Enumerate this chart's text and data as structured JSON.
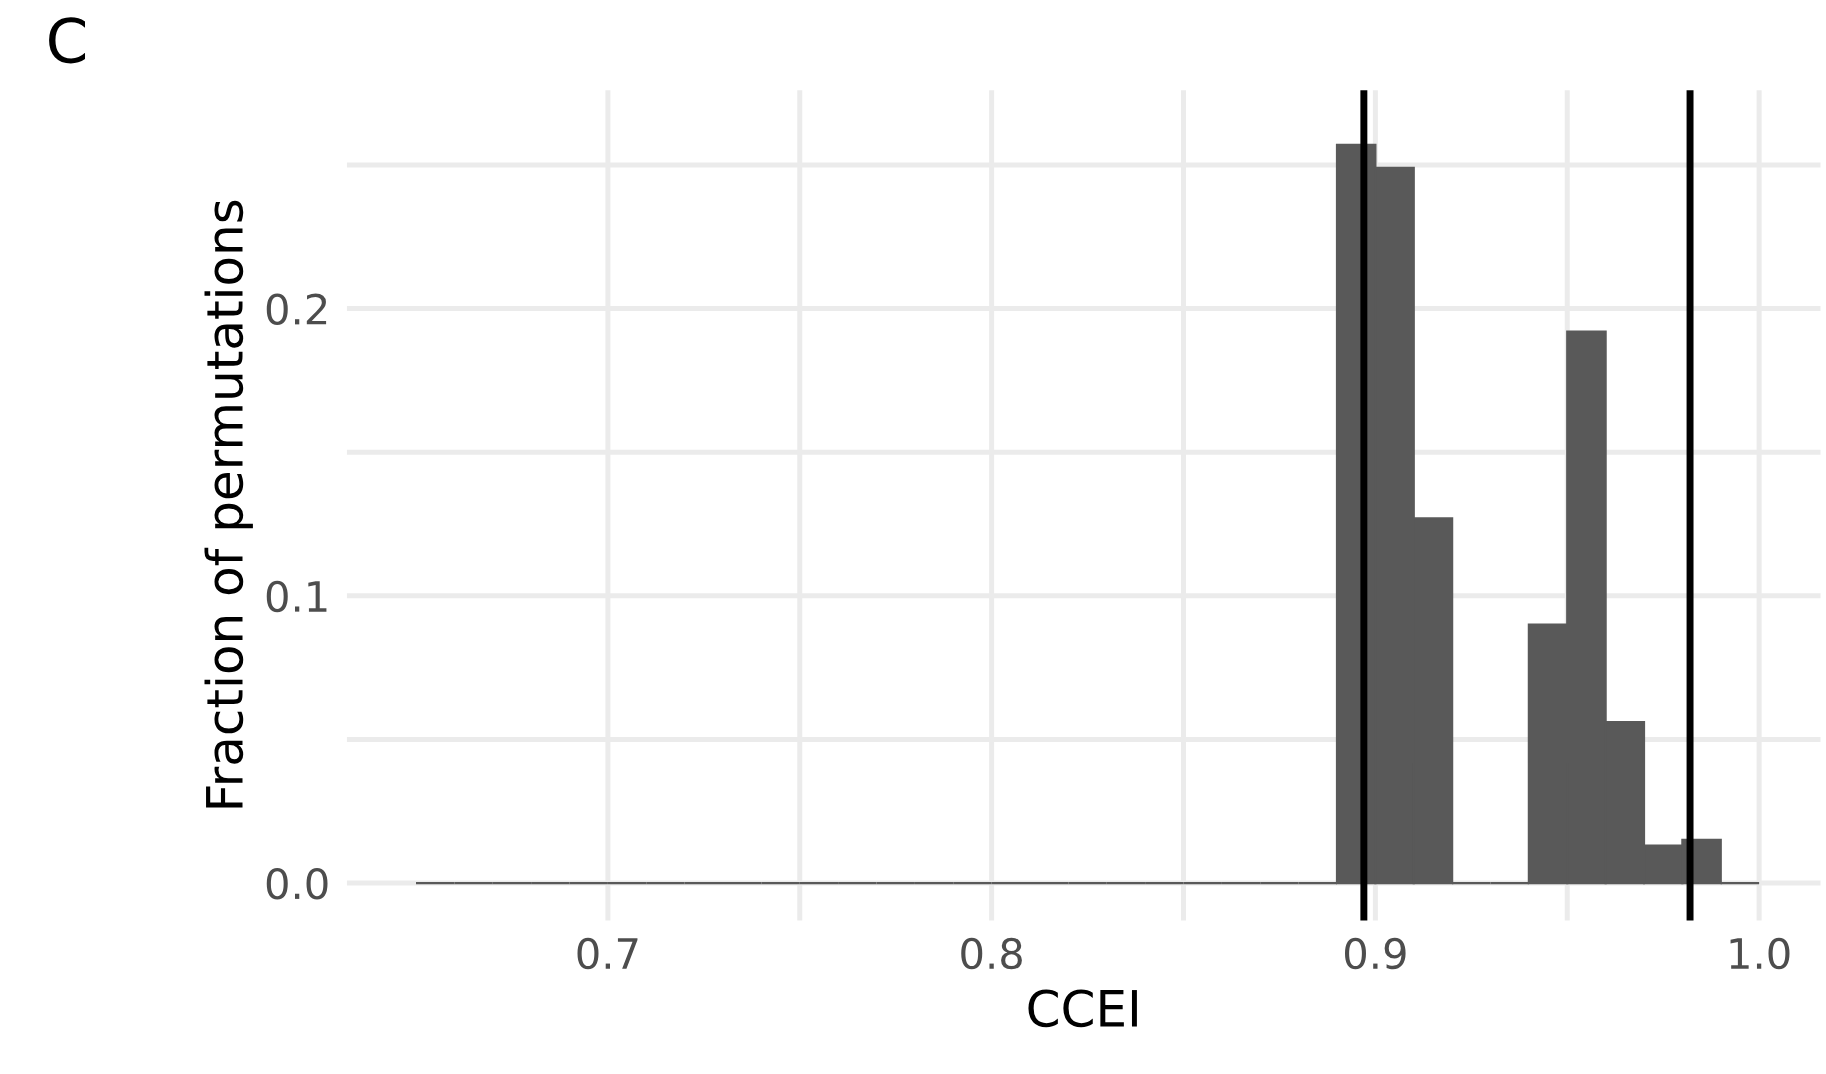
{
  "chart_data": {
    "type": "histogram",
    "title": "C",
    "xlabel": "CCEI",
    "ylabel": "Fraction of permutations",
    "bins": [
      0.65,
      0.66,
      0.67,
      0.68,
      0.69,
      0.7,
      0.71,
      0.72,
      0.73,
      0.74,
      0.75,
      0.76,
      0.77,
      0.78,
      0.79,
      0.8,
      0.81,
      0.82,
      0.83,
      0.84,
      0.85,
      0.86,
      0.87,
      0.88,
      0.89,
      0.9,
      0.91,
      0.92,
      0.93,
      0.94,
      0.95,
      0.96,
      0.97,
      0.98,
      0.99,
      1.0
    ],
    "values": [
      0,
      0,
      0,
      0,
      0,
      0,
      0,
      0,
      0,
      0,
      0,
      0,
      0,
      0,
      0,
      0,
      0,
      0,
      0,
      0,
      0,
      0,
      0,
      0,
      0.257,
      0.249,
      0.127,
      0,
      0,
      0.09,
      0.192,
      0.056,
      0.013,
      0.015,
      0
    ],
    "color": "#595959",
    "xlim": [
      0.632,
      1.016
    ],
    "ylim": [
      -0.013,
      0.276
    ],
    "xticks": [
      0.7,
      {
        "value": 0.75,
        "label": null
      },
      0.8,
      {
        "value": 0.85,
        "label": null
      },
      0.9,
      {
        "value": 0.95,
        "label": null
      },
      {
        "value": 1.0,
        "label": "1.0"
      }
    ],
    "yticks": [
      {
        "value": 0.0,
        "label": "0.0"
      },
      {
        "value": 0.05,
        "label": null
      },
      0.1,
      {
        "value": 0.15,
        "label": null
      },
      0.2,
      {
        "value": 0.25,
        "label": null
      }
    ],
    "ref_lines": [
      {
        "axis": "x",
        "value": 0.897,
        "color": "#000000"
      },
      {
        "axis": "x",
        "value": 0.982,
        "color": "#000000"
      }
    ],
    "grid": true
  }
}
